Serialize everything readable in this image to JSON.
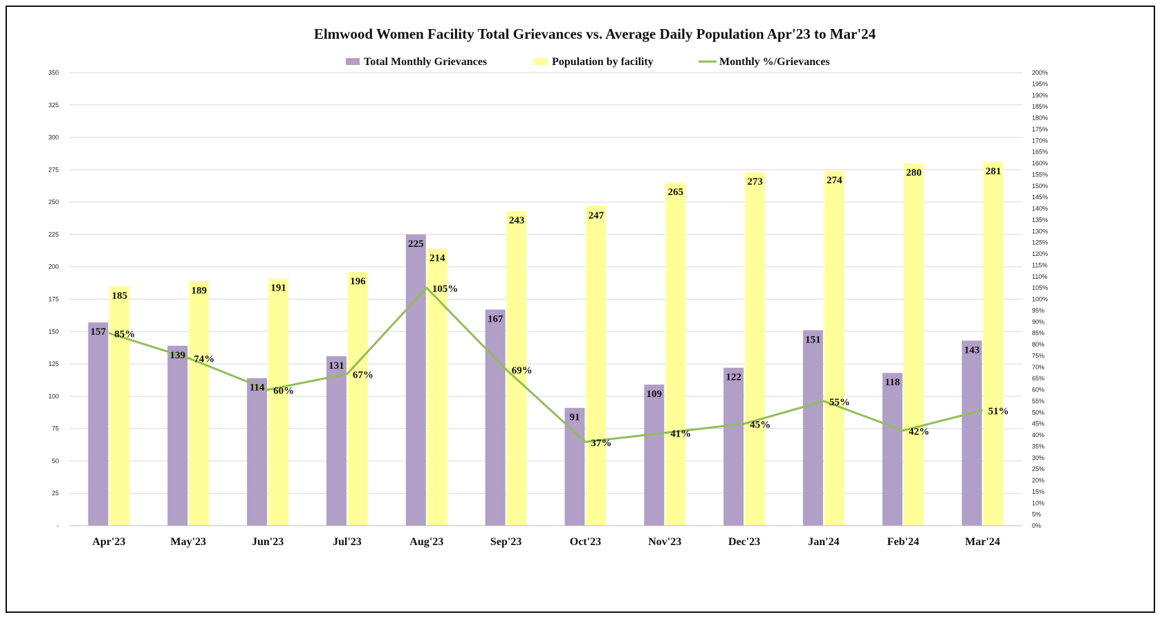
{
  "colors": {
    "grievances": "#b19fc7",
    "population": "#ffff99",
    "line": "#92bd5a",
    "grid": "#d9d9d9"
  },
  "chart_data": {
    "type": "bar",
    "title": "Elmwood Women Facility Total Grievances vs. Average Daily Population Apr'23 to Mar'24",
    "categories": [
      "Apr'23",
      "May'23",
      "Jun'23",
      "Jul'23",
      "Aug'23",
      "Sep'23",
      "Oct'23",
      "Nov'23",
      "Dec'23",
      "Jan'24",
      "Feb'24",
      "Mar'24"
    ],
    "series": [
      {
        "name": "Total Monthly Grievances",
        "type": "bar",
        "axis": "left",
        "values": [
          157,
          139,
          114,
          131,
          225,
          167,
          91,
          109,
          122,
          151,
          118,
          143
        ]
      },
      {
        "name": "Population by facility",
        "type": "bar",
        "axis": "left",
        "values": [
          185,
          189,
          191,
          196,
          214,
          243,
          247,
          265,
          273,
          274,
          280,
          281
        ]
      },
      {
        "name": "Monthly %/Grievances",
        "type": "line",
        "axis": "right",
        "values": [
          85,
          74,
          60,
          67,
          105,
          69,
          37,
          41,
          45,
          55,
          42,
          51
        ]
      }
    ],
    "left_axis": {
      "ylim": [
        0,
        350
      ],
      "tick_labels": [
        "-",
        "25",
        "50",
        "75",
        "100",
        "125",
        "150",
        "175",
        "200",
        "225",
        "250",
        "275",
        "300",
        "325",
        "350"
      ]
    },
    "right_axis": {
      "ylim": [
        0,
        200
      ],
      "step": 5,
      "unit": "%"
    },
    "grid": true,
    "legend_position": "top"
  }
}
